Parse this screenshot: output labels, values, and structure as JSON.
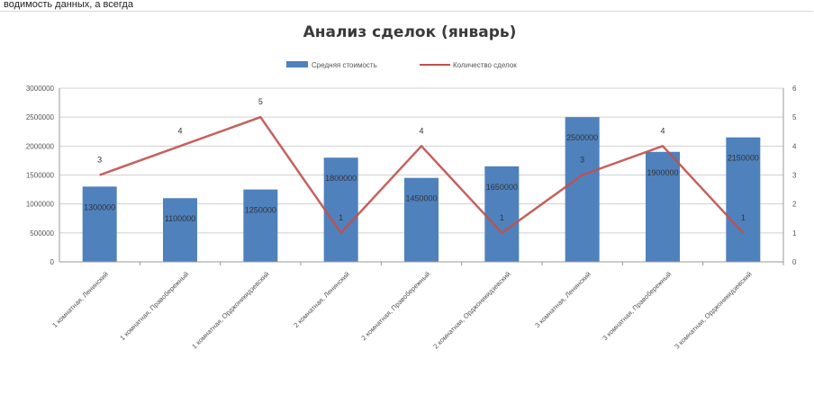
{
  "page": {
    "top_caption": "водимость данных, а всегда"
  },
  "chart_data": {
    "type": "bar",
    "title": "Анализ сделок (январь)",
    "categories": [
      "1 комнатная, Ленинский",
      "1 комнатная, Правобережный",
      "1 комнатная, Орджоникидзевский",
      "2 комнатная, Ленинский",
      "2 комнатная, Правобережный",
      "2 комнатная, Орджоникидзевский",
      "3 комнатная, Ленинский",
      "3 комнатная, Правобережный",
      "3 комнатная, Орджоникидзевский"
    ],
    "series": [
      {
        "name": "Средняя стоимость",
        "type": "bar",
        "axis": "left",
        "color": "#4f81bd",
        "values": [
          1300000,
          1100000,
          1250000,
          1800000,
          1450000,
          1650000,
          2500000,
          1900000,
          2150000
        ]
      },
      {
        "name": "Количество сделок",
        "type": "line",
        "axis": "right",
        "color": "#c0504d",
        "values": [
          3,
          4,
          5,
          1,
          4,
          1,
          3,
          4,
          1
        ]
      }
    ],
    "bar_labels": [
      "1300000",
      "1100000",
      "1250000",
      "1800000",
      "1450000",
      "1650000",
      "2500000",
      "1900000",
      "2150000"
    ],
    "line_labels": [
      "3",
      "4",
      "5",
      "1",
      "4",
      "1",
      "3",
      "4",
      "1"
    ],
    "ylim_left": [
      0,
      3000000
    ],
    "ylim_right": [
      0,
      6
    ],
    "y_ticks_left": [
      0,
      500000,
      1000000,
      1500000,
      2000000,
      2500000,
      3000000
    ],
    "y_ticks_right": [
      0,
      1,
      2,
      3,
      4,
      5,
      6
    ],
    "grid": true,
    "legend_position": "top"
  }
}
